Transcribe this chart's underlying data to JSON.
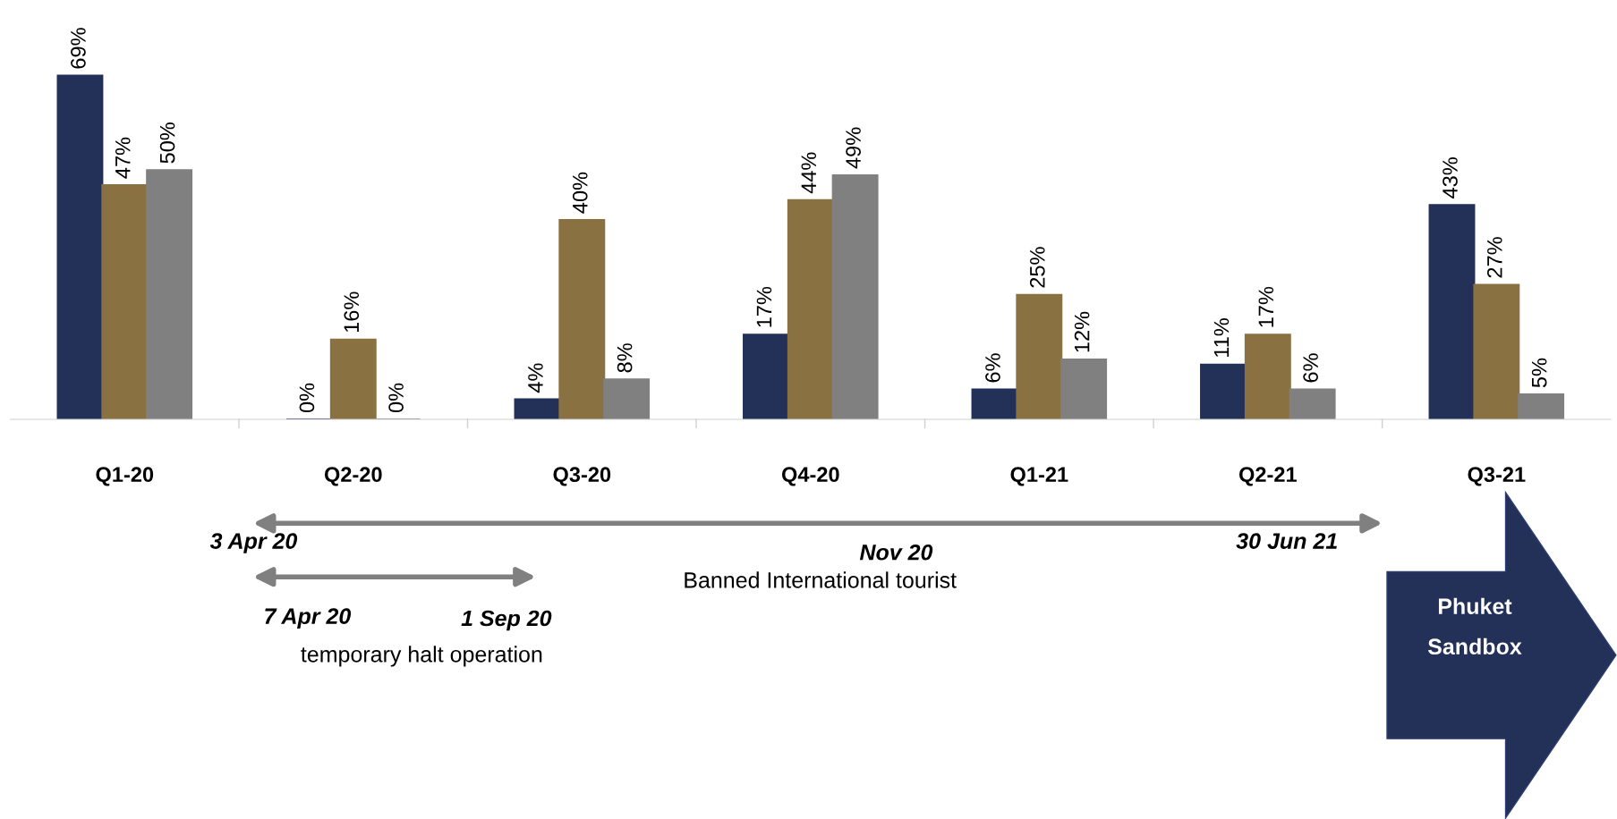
{
  "chart_data": {
    "type": "bar",
    "categories": [
      "Q1-20",
      "Q2-20",
      "Q3-20",
      "Q4-20",
      "Q1-21",
      "Q2-21",
      "Q3-21"
    ],
    "series": [
      {
        "color": "#233058",
        "values": [
          69,
          0,
          4,
          17,
          6,
          11,
          43
        ],
        "value_labels": [
          "69%",
          "0%",
          "4%",
          "17%",
          "6%",
          "11%",
          "43%"
        ]
      },
      {
        "color": "#8a7142",
        "values": [
          47,
          16,
          40,
          44,
          25,
          17,
          27
        ],
        "value_labels": [
          "47%",
          "16%",
          "40%",
          "44%",
          "25%",
          "17%",
          "27%"
        ]
      },
      {
        "color": "#808080",
        "values": [
          50,
          0,
          8,
          49,
          12,
          6,
          5
        ],
        "value_labels": [
          "50%",
          "0%",
          "8%",
          "49%",
          "12%",
          "6%",
          "5%"
        ]
      }
    ],
    "grid": false,
    "legend": false,
    "annotations": [
      "3 Apr 20",
      "Nov 20",
      "30 Jun 21",
      "Banned International tourist",
      "7 Apr 20",
      "1 Sep 20",
      "temporary halt operation",
      "Phuket\nSandbox"
    ]
  }
}
